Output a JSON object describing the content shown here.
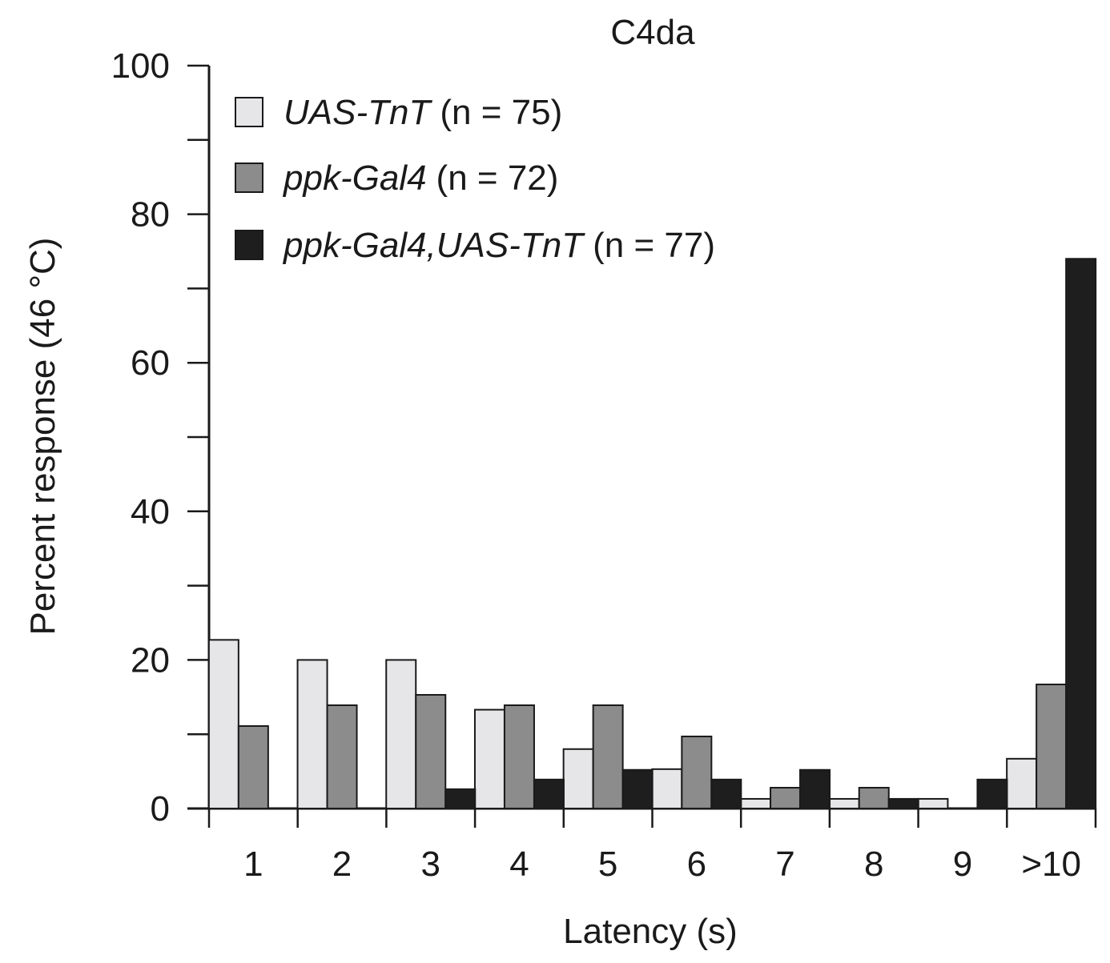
{
  "chart_data": {
    "type": "bar",
    "title": "C4da",
    "xlabel": "Latency (s)",
    "ylabel": "Percent response (46 °C)",
    "categories": [
      "1",
      "2",
      "3",
      "4",
      "5",
      "6",
      "7",
      "8",
      "9",
      ">10"
    ],
    "ylim": [
      0,
      100
    ],
    "yticks": [
      "0",
      "20",
      "40",
      "60",
      "80",
      "100"
    ],
    "grid": false,
    "legend_position": "top-left",
    "series": [
      {
        "name": "UAS-TnT",
        "n_label": "(n = 75)",
        "color": "#e6e6e8",
        "values": [
          22.7,
          20.0,
          20.0,
          13.3,
          8.0,
          5.3,
          1.3,
          1.3,
          1.3,
          6.7
        ]
      },
      {
        "name": "ppk-Gal4",
        "n_label": "(n = 72)",
        "color": "#8c8c8c",
        "values": [
          11.1,
          13.9,
          15.3,
          13.9,
          13.9,
          9.7,
          2.8,
          2.8,
          0,
          16.7
        ]
      },
      {
        "name": "ppk-Gal4,UAS-TnT",
        "n_label": "(n = 77)",
        "color": "#1e1e1e",
        "values": [
          0,
          0,
          2.6,
          3.9,
          5.2,
          3.9,
          5.2,
          1.3,
          3.9,
          74.0
        ]
      }
    ]
  }
}
